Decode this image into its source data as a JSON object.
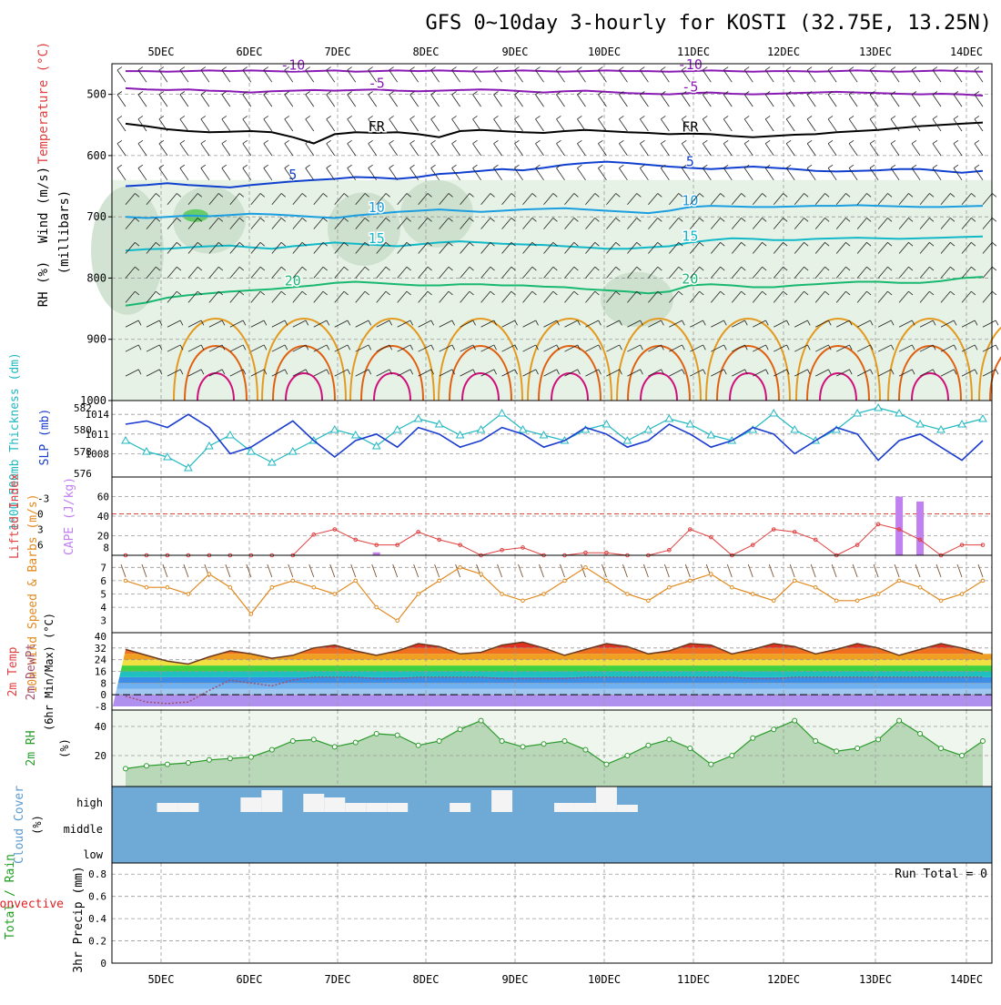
{
  "title": "GFS 0~10day 3-hourly for KOSTI (32.75E, 13.25N)",
  "day_labels": [
    "5DEC",
    "6DEC",
    "7DEC",
    "8DEC",
    "9DEC",
    "10DEC",
    "11DEC",
    "12DEC",
    "13DEC",
    "14DEC"
  ],
  "colors": {
    "purple": "#8a1ab4",
    "black": "#000000",
    "blue": "#1040d0",
    "lightblue": "#1a9ee0",
    "cyan": "#10b8c8",
    "green": "#18b870",
    "orange": "#e49a20",
    "darkorange": "#e06010",
    "magenta": "#d0107a",
    "slp": "#1a3ccf",
    "thick": "#20b8c0",
    "li": "#e04040",
    "cape": "#c080f0",
    "wind": "#e08a20",
    "barb": "#7a5030",
    "rh": "#2a9a2a",
    "cloud": "#6fa9d6",
    "precip_total": "#20a020",
    "precip_conv": "#e02020"
  },
  "chart_data": [
    {
      "id": "profile",
      "type": "heatmap",
      "title": "GFS 0~10day 3-hourly for KOSTI (32.75E, 13.25N)",
      "ylabel_parts": [
        "Wind (m/s)",
        "Temperature (°C)",
        "RH (%)"
      ],
      "ylabel2": "(millibars)",
      "y_ticks": [
        "500",
        "600",
        "700",
        "800",
        "900",
        "1000"
      ],
      "ylim": [
        1000,
        450
      ],
      "contours": [
        {
          "label": "-10",
          "level_mb": [
            462,
            462,
            463,
            462,
            461,
            462,
            461,
            462,
            463,
            462,
            461,
            463,
            462,
            461,
            462,
            461,
            462,
            463,
            462,
            461,
            462,
            463,
            462,
            461,
            462,
            462,
            463,
            462,
            461,
            462,
            463,
            462,
            462,
            463,
            462,
            461,
            462,
            463,
            462,
            461,
            462,
            463
          ]
        },
        {
          "label": "-5",
          "level_mb": [
            490,
            492,
            493,
            492,
            494,
            495,
            497,
            495,
            494,
            493,
            494,
            493,
            492,
            494,
            495,
            494,
            493,
            492,
            493,
            495,
            497,
            495,
            494,
            496,
            498,
            499,
            500,
            498,
            497,
            499,
            500,
            499,
            498,
            497,
            496,
            497,
            498,
            499,
            500,
            499,
            500,
            502
          ]
        },
        {
          "label": "FR",
          "level_mb": [
            548,
            552,
            557,
            560,
            562,
            561,
            560,
            562,
            570,
            580,
            565,
            562,
            563,
            562,
            565,
            570,
            560,
            558,
            560,
            562,
            563,
            560,
            558,
            560,
            562,
            563,
            565,
            564,
            565,
            568,
            570,
            568,
            566,
            565,
            562,
            560,
            558,
            555,
            552,
            550,
            548,
            546
          ]
        },
        {
          "label": "5",
          "level_mb": [
            650,
            648,
            645,
            648,
            650,
            652,
            648,
            645,
            642,
            640,
            638,
            635,
            636,
            638,
            635,
            630,
            628,
            625,
            622,
            624,
            620,
            615,
            612,
            610,
            612,
            615,
            618,
            620,
            622,
            620,
            618,
            620,
            622,
            625,
            626,
            625,
            624,
            622,
            622,
            625,
            628,
            625
          ]
        },
        {
          "label": "10",
          "level_mb": [
            700,
            702,
            700,
            698,
            699,
            697,
            695,
            696,
            698,
            700,
            702,
            698,
            695,
            692,
            690,
            688,
            690,
            692,
            690,
            688,
            687,
            686,
            688,
            690,
            692,
            694,
            690,
            684,
            682,
            683,
            684,
            684,
            683,
            682,
            682,
            681,
            682,
            683,
            684,
            684,
            683,
            682
          ]
        },
        {
          "label": "15",
          "level_mb": [
            755,
            753,
            752,
            750,
            748,
            747,
            750,
            752,
            748,
            745,
            742,
            744,
            746,
            748,
            745,
            742,
            740,
            742,
            744,
            745,
            746,
            748,
            750,
            752,
            752,
            750,
            748,
            742,
            738,
            735,
            736,
            738,
            738,
            736,
            735,
            734,
            735,
            736,
            735,
            734,
            733,
            732
          ]
        },
        {
          "label": "20",
          "level_mb": [
            845,
            840,
            832,
            828,
            825,
            822,
            820,
            818,
            815,
            812,
            808,
            806,
            808,
            810,
            812,
            812,
            810,
            810,
            812,
            812,
            814,
            815,
            818,
            820,
            822,
            825,
            822,
            812,
            810,
            812,
            815,
            815,
            812,
            810,
            808,
            806,
            806,
            808,
            808,
            805,
            800,
            798
          ]
        }
      ]
    },
    {
      "id": "slp_thickness",
      "type": "line",
      "ylabel_left": "1000-500mb Thickness (dm)",
      "ylabel_right": "SLP (mb)",
      "y_ticks_left": [
        "576",
        "578",
        "580",
        "582"
      ],
      "y_ticks_right": [
        "1008",
        "1011",
        "1014"
      ],
      "series": [
        {
          "name": "SLP (mb)",
          "values": [
            1012.5,
            1013,
            1012,
            1014,
            1012,
            1008,
            1009,
            1011,
            1013,
            1010,
            1007.5,
            1010,
            1011,
            1009,
            1012,
            1011,
            1009,
            1010,
            1012,
            1011,
            1009,
            1010,
            1012,
            1011,
            1009,
            1010,
            1012.5,
            1011,
            1009,
            1010,
            1012,
            1011,
            1008,
            1010,
            1012,
            1011,
            1007,
            1010,
            1011,
            1009,
            1007,
            1010
          ]
        },
        {
          "name": "1000-500mb Thickness (dm)",
          "values": [
            579,
            578,
            577.5,
            576.5,
            578.5,
            579.5,
            578,
            577,
            578,
            579,
            580,
            579.5,
            578.5,
            580,
            581,
            580.5,
            579.5,
            580,
            581.5,
            580,
            579.5,
            579,
            580,
            580.5,
            579,
            580,
            581,
            580.5,
            579.5,
            579,
            580,
            581.5,
            580,
            579,
            580,
            581.5,
            582,
            581.5,
            580.5,
            580,
            580.5,
            581
          ]
        }
      ]
    },
    {
      "id": "li_cape",
      "type": "bar",
      "ylabel_left": "Lifted Index",
      "ylabel_right": "CAPE (J/kg)",
      "y_ticks_left": [
        "-3",
        "0",
        "3",
        "6"
      ],
      "y_ticks_right": [
        "8",
        "20",
        "40",
        "60"
      ],
      "series": [
        {
          "name": "Lifted Index",
          "values": [
            8,
            8,
            8,
            8,
            8,
            8,
            8,
            8,
            8,
            4,
            3,
            5,
            6,
            6,
            3.5,
            5,
            6,
            8,
            7,
            6.5,
            8,
            8,
            7.5,
            7.5,
            8,
            8,
            7,
            3,
            4.5,
            8,
            6,
            3,
            3.5,
            5,
            8,
            6,
            2,
            3,
            5,
            8,
            6,
            6
          ]
        },
        {
          "name": "CAPE (J/kg)",
          "values": [
            0,
            0,
            0,
            0,
            0,
            0,
            0,
            0,
            0,
            0,
            0,
            0,
            3,
            0,
            0,
            0,
            0,
            0,
            0,
            0,
            0,
            0,
            0,
            0,
            0,
            0,
            0,
            0,
            0,
            0,
            0,
            0,
            0,
            0,
            0,
            0,
            0,
            60,
            55,
            0,
            0,
            0
          ]
        }
      ]
    },
    {
      "id": "wind10m",
      "type": "line",
      "ylabel": "10m Wind Speed & Barbs (m/s)",
      "y_ticks": [
        "3",
        "4",
        "5",
        "6",
        "7"
      ],
      "series": [
        {
          "name": "10m Wind Speed",
          "values": [
            6,
            5.5,
            5.5,
            5,
            6.5,
            5.5,
            3.5,
            5.5,
            6,
            5.5,
            5,
            6,
            4,
            3,
            5,
            6,
            7,
            6.5,
            5,
            4.5,
            5,
            6,
            7,
            6,
            5,
            4.5,
            5.5,
            6,
            6.5,
            5.5,
            5,
            4.5,
            6,
            5.5,
            4.5,
            4.5,
            5,
            6,
            5.5,
            4.5,
            5,
            6
          ]
        }
      ]
    },
    {
      "id": "temp",
      "type": "area",
      "ylabel": "2m Temp 2m DewPt (6hr Min/Max) (°C)",
      "y_ticks": [
        "-8",
        "0",
        "8",
        "16",
        "24",
        "32",
        "40"
      ],
      "series": [
        {
          "name": "2m Temp",
          "values": [
            31,
            27,
            23,
            21,
            26,
            30,
            28,
            25,
            27,
            32,
            34,
            30,
            27,
            30,
            35,
            33,
            28,
            29,
            34,
            36,
            32,
            27,
            31,
            35,
            33,
            28,
            30,
            35,
            34,
            28,
            31,
            35,
            33,
            28,
            31,
            35,
            32,
            27,
            31,
            35,
            32,
            28
          ]
        },
        {
          "name": "2m DewPt",
          "values": [
            -1,
            -5,
            -6,
            -5,
            3,
            10,
            8,
            6,
            10,
            12,
            12,
            12,
            11,
            11,
            12,
            12,
            12,
            12,
            11,
            11,
            11,
            11,
            12,
            12,
            12,
            12,
            12,
            12,
            12,
            12,
            11,
            11,
            12,
            12,
            12,
            12,
            12,
            12,
            12,
            12,
            12,
            12
          ]
        }
      ]
    },
    {
      "id": "rh",
      "type": "area",
      "ylabel": "2m RH (%)",
      "y_ticks": [
        "20",
        "40"
      ],
      "series": [
        {
          "name": "2m RH",
          "values": [
            11,
            13,
            14,
            15,
            17,
            18,
            19,
            24,
            30,
            31,
            26,
            29,
            35,
            34,
            27,
            30,
            38,
            44,
            30,
            26,
            28,
            30,
            24,
            14,
            20,
            27,
            31,
            25,
            14,
            20,
            32,
            38,
            44,
            30,
            23,
            25,
            31,
            44,
            35,
            25,
            20,
            30
          ]
        }
      ]
    },
    {
      "id": "cloud",
      "type": "bar",
      "ylabel": "Cloud Cover (%)",
      "y_ticks": [
        "high",
        "middle",
        "low"
      ],
      "series": [
        {
          "name": "high",
          "values": [
            0,
            0,
            5,
            5,
            0,
            0,
            8,
            12,
            0,
            10,
            8,
            5,
            5,
            5,
            0,
            0,
            5,
            0,
            12,
            0,
            0,
            5,
            5,
            14,
            4,
            0,
            0,
            0,
            0,
            0,
            0,
            0,
            0,
            0,
            0,
            0,
            0,
            0,
            0,
            0,
            0,
            0
          ]
        }
      ]
    },
    {
      "id": "precip",
      "type": "bar",
      "ylabel": "3hr Precip (mm)",
      "legend": [
        "Total / Rain",
        "Convective"
      ],
      "y_ticks": [
        "0",
        "0.2",
        "0.4",
        "0.6",
        "0.8"
      ],
      "annotation": "Run Total = 0",
      "series": [
        {
          "name": "Total / Rain",
          "values": [
            0,
            0,
            0,
            0,
            0,
            0,
            0,
            0,
            0,
            0,
            0,
            0,
            0,
            0,
            0,
            0,
            0,
            0,
            0,
            0,
            0,
            0,
            0,
            0,
            0,
            0,
            0,
            0,
            0,
            0,
            0,
            0,
            0,
            0,
            0,
            0,
            0,
            0,
            0,
            0,
            0,
            0
          ]
        }
      ]
    }
  ]
}
